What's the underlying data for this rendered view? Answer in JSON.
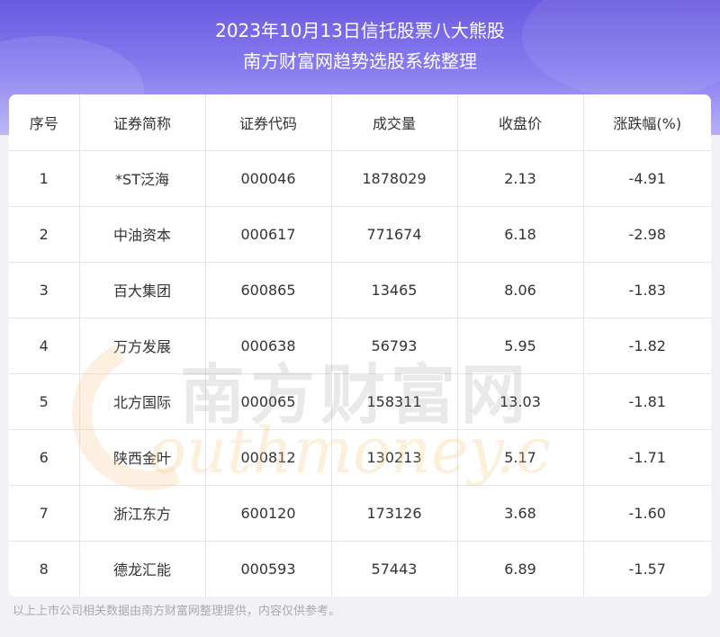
{
  "header": {
    "line1": "2023年10月13日信托股票八大熊股",
    "line2": "南方财富网趋势选股系统整理"
  },
  "table": {
    "columns": [
      "序号",
      "证券简称",
      "证券代码",
      "成交量",
      "收盘价",
      "涨跌幅(%)"
    ],
    "rows": [
      [
        "1",
        "*ST泛海",
        "000046",
        "1878029",
        "2.13",
        "-4.91"
      ],
      [
        "2",
        "中油资本",
        "000617",
        "771674",
        "6.18",
        "-2.98"
      ],
      [
        "3",
        "百大集团",
        "600865",
        "13465",
        "8.06",
        "-1.83"
      ],
      [
        "4",
        "万方发展",
        "000638",
        "56793",
        "5.95",
        "-1.82"
      ],
      [
        "5",
        "北方国际",
        "000065",
        "158311",
        "13.03",
        "-1.81"
      ],
      [
        "6",
        "陕西金叶",
        "000812",
        "130213",
        "5.17",
        "-1.71"
      ],
      [
        "7",
        "浙江东方",
        "600120",
        "173126",
        "3.68",
        "-1.60"
      ],
      [
        "8",
        "德龙汇能",
        "000593",
        "57443",
        "6.89",
        "-1.57"
      ]
    ]
  },
  "watermark": {
    "cn": "南方财富网",
    "en": "outhmoney.c"
  },
  "footer": {
    "note": "以上上市公司相关数据由南方财富网整理提供，内容仅供参考。"
  }
}
